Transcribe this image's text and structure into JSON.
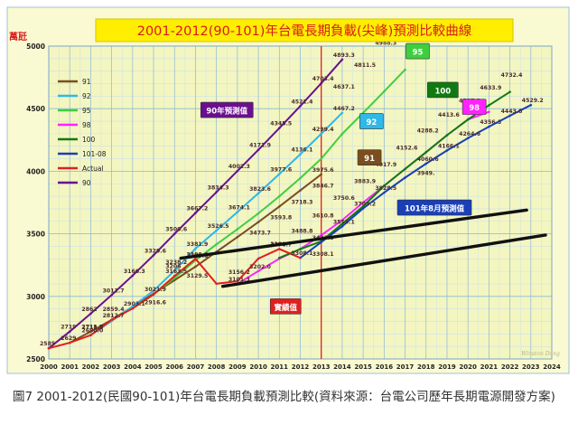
{
  "figure": {
    "caption": "圖7 2001-2012(民國90-101)年台電長期負載預測比較(資料來源：台電公司歷年長期電源開發方案)"
  },
  "chart_data": {
    "type": "line",
    "title": "2001-2012(90-101)年台電長期負載(尖峰)預測比較曲線",
    "ylabel": "萬瓩",
    "xlabel": "",
    "xlim": [
      2000,
      2024
    ],
    "ylim": [
      2500,
      5000
    ],
    "x_ticks": [
      2000,
      2001,
      2002,
      2003,
      2004,
      2005,
      2006,
      2007,
      2008,
      2009,
      2010,
      2011,
      2012,
      2013,
      2014,
      2015,
      2016,
      2017,
      2018,
      2019,
      2020,
      2021,
      2022,
      2023,
      2024
    ],
    "y_ticks": [
      2500,
      3000,
      3500,
      4000,
      4500,
      5000
    ],
    "grid": true,
    "legend_position": "upper-left",
    "colors": {
      "background": "#fafad2",
      "plot_background": "#f3f6c0",
      "grid_major": "#8fb9d6",
      "grid_minor": "#cfe0ea",
      "title_box": "#ffee00",
      "title_text": "#d81b1b",
      "label_box": "#cc0000",
      "frame": "#9cc3d6"
    },
    "series": [
      {
        "name": "90",
        "color": "#6a0f8e",
        "x": [
          2000,
          2001,
          2002,
          2003,
          2004,
          2005,
          2006,
          2007,
          2008,
          2009,
          2010,
          2011,
          2012,
          2013,
          2014
        ],
        "y": [
          2585,
          2719,
          2862,
          3011,
          3166,
          3329,
          3500,
          3667,
          3834,
          4002,
          4171,
          4345,
          4521,
          4703,
          4893
        ]
      },
      {
        "name": "91",
        "color": "#7a4e1e",
        "x": [
          2001,
          2002,
          2003,
          2004,
          2005,
          2006,
          2007,
          2008,
          2009,
          2010,
          2011,
          2012,
          2013
        ],
        "y": [
          2629,
          2718.8,
          2812.7,
          2916.6,
          3021.9,
          3129.5,
          3238,
          3356,
          3473.7,
          3593.8,
          3718.3,
          3846.7,
          3975.6
        ]
      },
      {
        "name": "92",
        "color": "#2fb8e8",
        "x": [
          2002,
          2003,
          2004,
          2005,
          2006,
          2007,
          2008,
          2009,
          2010,
          2011,
          2012,
          2013,
          2014
        ],
        "y": [
          2690,
          2803,
          2920,
          3045,
          3206,
          3381.9,
          3526.5,
          3674.1,
          3823.6,
          3977.6,
          4136.1,
          4299.4,
          4467.2
        ]
      },
      {
        "name": "95",
        "color": "#3fce3f",
        "x": [
          2005,
          2006,
          2007,
          2008,
          2009,
          2010,
          2011,
          2012,
          2013,
          2014,
          2015,
          2016,
          2017
        ],
        "y": [
          3015,
          3148,
          3289,
          3416,
          3537,
          3663,
          3800,
          3945,
          4100,
          4299,
          4467,
          4637.1,
          4811.5
        ]
      },
      {
        "name": "98",
        "color": "#ff22ff",
        "x": [
          2009,
          2010,
          2011,
          2012,
          2013,
          2014,
          2015,
          2016,
          2017,
          2018,
          2019,
          2020,
          2021
        ],
        "y": [
          3101.3,
          3202,
          3301,
          3378.7,
          3488.8,
          3609,
          3750,
          3883.9,
          4017.9,
          4152.6,
          4288.2,
          4413.6,
          4475
        ]
      },
      {
        "name": "100",
        "color": "#107a10",
        "x": [
          2011,
          2012,
          2013,
          2014,
          2015,
          2016,
          2017,
          2018,
          2019,
          2020,
          2021,
          2022
        ],
        "y": [
          3308.1,
          3378,
          3440,
          3580,
          3720,
          3883.9,
          4017.9,
          4152.6,
          4288.2,
          4413.6,
          4527.2,
          4633.9
        ]
      },
      {
        "name": "101-08",
        "color": "#1a3fb8",
        "x": [
          2012,
          2013,
          2014,
          2015,
          2016,
          2017,
          2018,
          2019,
          2020,
          2021,
          2022,
          2023
        ],
        "y": [
          3308.1,
          3433.8,
          3559.1,
          3703.2,
          3828.5,
          3949,
          4060.6,
          4166.1,
          4264.6,
          4356.3,
          4443.8,
          4529.2
        ]
      },
      {
        "name": "Actual",
        "color": "#e02020",
        "x": [
          2000,
          2001,
          2002,
          2003,
          2004,
          2005,
          2006,
          2007,
          2008,
          2009,
          2010,
          2011,
          2012
        ],
        "y": [
          2585,
          2629,
          2690,
          2812.7,
          2903,
          3015,
          3163.5,
          3300.4,
          3101.3,
          3121,
          3302,
          3378.7,
          3308.1
        ]
      }
    ],
    "data_labels": [
      {
        "t": "2585",
        "x": 2000,
        "y": 2585
      },
      {
        "t": "2719",
        "x": 2001,
        "y": 2719
      },
      {
        "t": "2862",
        "x": 2002,
        "y": 2862
      },
      {
        "t": "3011.7",
        "x": 2003,
        "y": 3011
      },
      {
        "t": "3166.3",
        "x": 2004,
        "y": 3166
      },
      {
        "t": "3329.6",
        "x": 2005,
        "y": 3329
      },
      {
        "t": "3500.6",
        "x": 2006,
        "y": 3500
      },
      {
        "t": "3667.2",
        "x": 2007,
        "y": 3667
      },
      {
        "t": "3834.3",
        "x": 2008,
        "y": 3834
      },
      {
        "t": "4002.3",
        "x": 2009,
        "y": 4002
      },
      {
        "t": "4171.9",
        "x": 2010,
        "y": 4171
      },
      {
        "t": "4345.5",
        "x": 2011,
        "y": 4345
      },
      {
        "t": "4521.4",
        "x": 2012,
        "y": 4521
      },
      {
        "t": "4703.4",
        "x": 2013,
        "y": 4703
      },
      {
        "t": "4893.3",
        "x": 2014,
        "y": 4893
      },
      {
        "t": "2690.0",
        "x": 2002,
        "y": 2690
      },
      {
        "t": "2711.7",
        "x": 2002,
        "y": 2719
      },
      {
        "t": "2859.4",
        "x": 2003,
        "y": 2862
      },
      {
        "t": "2903.1",
        "x": 2004,
        "y": 2903
      },
      {
        "t": "2812.7",
        "x": 2003,
        "y": 2812
      },
      {
        "t": "2718.8",
        "x": 2002,
        "y": 2718
      },
      {
        "t": "2629",
        "x": 2001,
        "y": 2629
      },
      {
        "t": "2916.6",
        "x": 2005,
        "y": 2916
      },
      {
        "t": "3021.9",
        "x": 2005,
        "y": 3021
      },
      {
        "t": "3129.5",
        "x": 2007,
        "y": 3129
      },
      {
        "t": "3238.2",
        "x": 2006,
        "y": 3238
      },
      {
        "t": "3206",
        "x": 2006,
        "y": 3206
      },
      {
        "t": "3289.0",
        "x": 2007,
        "y": 3289
      },
      {
        "t": "3381.9",
        "x": 2007,
        "y": 3381
      },
      {
        "t": "3526.5",
        "x": 2008,
        "y": 3526
      },
      {
        "t": "3674.1",
        "x": 2009,
        "y": 3674
      },
      {
        "t": "3823.6",
        "x": 2010,
        "y": 3823
      },
      {
        "t": "3977.6",
        "x": 2011,
        "y": 3977
      },
      {
        "t": "4136.1",
        "x": 2012,
        "y": 4136
      },
      {
        "t": "4299.4",
        "x": 2013,
        "y": 4299
      },
      {
        "t": "4467.2",
        "x": 2014,
        "y": 4467
      },
      {
        "t": "3473.7",
        "x": 2010,
        "y": 3473
      },
      {
        "t": "3593.8",
        "x": 2011,
        "y": 3593
      },
      {
        "t": "3718.3",
        "x": 2012,
        "y": 3718
      },
      {
        "t": "3846.7",
        "x": 2013,
        "y": 3846
      },
      {
        "t": "3975.6",
        "x": 2013,
        "y": 3975
      },
      {
        "t": "3156.2",
        "x": 2009,
        "y": 3156
      },
      {
        "t": "3300.4",
        "x": 2007,
        "y": 3300
      },
      {
        "t": "3163.5",
        "x": 2006,
        "y": 3163
      },
      {
        "t": "3101.3",
        "x": 2009,
        "y": 3101
      },
      {
        "t": "3202.0",
        "x": 2010,
        "y": 3202
      },
      {
        "t": "3380",
        "x": 2011,
        "y": 3380
      },
      {
        "t": "3378.7",
        "x": 2011,
        "y": 3378
      },
      {
        "t": "3308.1",
        "x": 2012,
        "y": 3308
      },
      {
        "t": "3308.1",
        "x": 2013,
        "y": 3301
      },
      {
        "t": "3488.8",
        "x": 2012,
        "y": 3488
      },
      {
        "t": "3433.8",
        "x": 2013,
        "y": 3433
      },
      {
        "t": "3559.1",
        "x": 2014,
        "y": 3559
      },
      {
        "t": "3610.8",
        "x": 2013,
        "y": 3610
      },
      {
        "t": "3750.6",
        "x": 2014,
        "y": 3750
      },
      {
        "t": "3703.2",
        "x": 2015,
        "y": 3703
      },
      {
        "t": "3828.5",
        "x": 2016,
        "y": 3828
      },
      {
        "t": "3883.9",
        "x": 2015,
        "y": 3883
      },
      {
        "t": "4017.9",
        "x": 2016,
        "y": 4017
      },
      {
        "t": "4152.6",
        "x": 2017,
        "y": 4152
      },
      {
        "t": "4288.2",
        "x": 2018,
        "y": 4288
      },
      {
        "t": "4413.6",
        "x": 2019,
        "y": 4413
      },
      {
        "t": "3949.",
        "x": 2018,
        "y": 3949
      },
      {
        "t": "4060.6",
        "x": 2018,
        "y": 4060
      },
      {
        "t": "4166.1",
        "x": 2019,
        "y": 4166
      },
      {
        "t": "4264.6",
        "x": 2020,
        "y": 4264
      },
      {
        "t": "4356.3",
        "x": 2021,
        "y": 4356
      },
      {
        "t": "4443.8",
        "x": 2022,
        "y": 4443
      },
      {
        "t": "4529.2",
        "x": 2023,
        "y": 4529
      },
      {
        "t": "4527.2",
        "x": 2020,
        "y": 4527
      },
      {
        "t": "4633.9",
        "x": 2021,
        "y": 4633
      },
      {
        "t": "4732.4",
        "x": 2022,
        "y": 4732
      },
      {
        "t": "4637.1",
        "x": 2014,
        "y": 4637
      },
      {
        "t": "4811.5",
        "x": 2015,
        "y": 4811
      },
      {
        "t": "4988.3",
        "x": 2016,
        "y": 4988
      }
    ],
    "series_labels": [
      {
        "text": "90年預測值",
        "color": "#6a0f8e",
        "at_x": 2008.5,
        "at_y": 4490
      },
      {
        "text": "91",
        "color": "#7a4e1e",
        "at_x": 2015.3,
        "at_y": 4110
      },
      {
        "text": "92",
        "color": "#2fb8e8",
        "at_x": 2015.4,
        "at_y": 4400
      },
      {
        "text": "95",
        "color": "#3fce3f",
        "at_x": 2017.6,
        "at_y": 4960
      },
      {
        "text": "98",
        "color": "#ff22ff",
        "at_x": 2020.3,
        "at_y": 4515
      },
      {
        "text": "100",
        "color": "#107a10",
        "at_x": 2018.8,
        "at_y": 4650
      },
      {
        "text": "101年8月預測值",
        "color": "#1a3fb8",
        "at_x": 2018.4,
        "at_y": 3710
      },
      {
        "text": "實績值",
        "color": "#e02020",
        "at_x": 2011.3,
        "at_y": 2920
      }
    ],
    "reference_line": {
      "x": 2013,
      "color": "#e02020"
    },
    "trend_lines": [
      {
        "x1": 2006.3,
        "y1": 3305,
        "x2": 2022.8,
        "y2": 3690
      },
      {
        "x1": 2008.3,
        "y1": 3080,
        "x2": 2023.7,
        "y2": 3490
      }
    ],
    "watermark": "Winston Dang"
  }
}
